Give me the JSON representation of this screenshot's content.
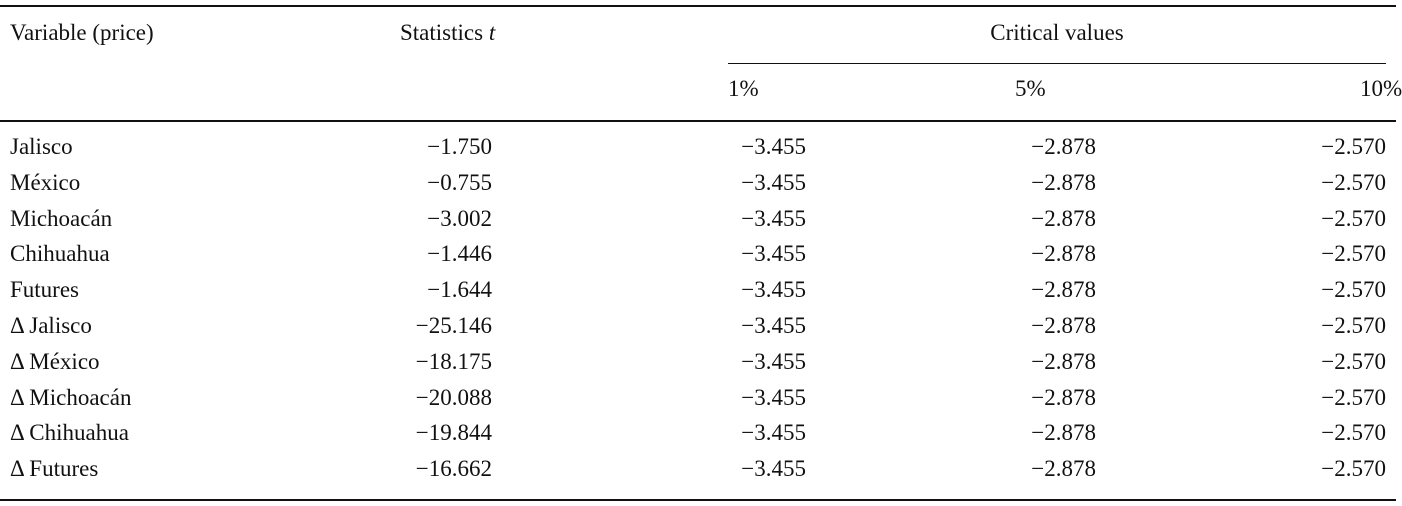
{
  "table": {
    "header": {
      "variable": "Variable (price)",
      "statistic": "Statistics",
      "statistic_symbol": "t",
      "critical": "Critical values"
    },
    "subheader": [
      "1%",
      "5%",
      "10%"
    ],
    "rows": [
      [
        "Jalisco",
        "−1.750",
        "−3.455",
        "−2.878",
        "−2.570"
      ],
      [
        "México",
        "−0.755",
        "−3.455",
        "−2.878",
        "−2.570"
      ],
      [
        "Michoacán",
        "−3.002",
        "−3.455",
        "−2.878",
        "−2.570"
      ],
      [
        "Chihuahua",
        "−1.446",
        "−3.455",
        "−2.878",
        "−2.570"
      ],
      [
        "Futures",
        "−1.644",
        "−3.455",
        "−2.878",
        "−2.570"
      ],
      [
        "Δ Jalisco",
        "−25.146",
        "−3.455",
        "−2.878",
        "−2.570"
      ],
      [
        "Δ México",
        "−18.175",
        "−3.455",
        "−2.878",
        "−2.570"
      ],
      [
        "Δ Michoacán",
        "−20.088",
        "−3.455",
        "−2.878",
        "−2.570"
      ],
      [
        "Δ Chihuahua",
        "−19.844",
        "−3.455",
        "−2.878",
        "−2.570"
      ],
      [
        "Δ Futures",
        "−16.662",
        "−3.455",
        "−2.878",
        "−2.570"
      ]
    ]
  }
}
